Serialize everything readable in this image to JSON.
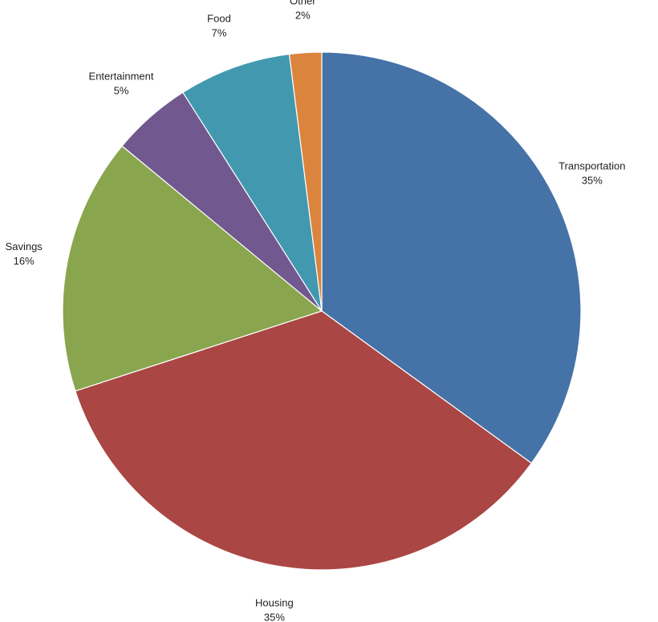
{
  "chart_data": {
    "type": "pie",
    "start_angle_deg": 0,
    "direction": "clockwise",
    "slices": [
      {
        "label": "Transportation",
        "value": 35,
        "percent_label": "35%",
        "color": "#4572A7"
      },
      {
        "label": "Housing",
        "value": 35,
        "percent_label": "35%",
        "color": "#AA4643"
      },
      {
        "label": "Savings",
        "value": 16,
        "percent_label": "16%",
        "color": "#89A54E"
      },
      {
        "label": "Entertainment",
        "value": 5,
        "percent_label": "5%",
        "color": "#71588F"
      },
      {
        "label": "Food",
        "value": 7,
        "percent_label": "7%",
        "color": "#4198AF"
      },
      {
        "label": "Other",
        "value": 2,
        "percent_label": "2%",
        "color": "#DB843D"
      }
    ]
  }
}
